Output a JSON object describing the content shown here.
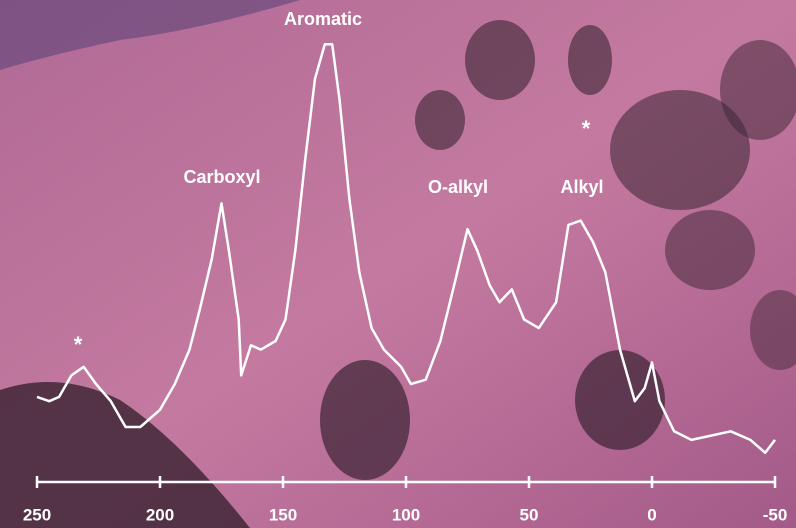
{
  "chart_data": {
    "type": "line",
    "x": [
      250,
      245,
      241,
      236,
      231,
      226,
      220,
      214,
      208,
      200,
      194,
      188,
      184,
      179,
      175,
      172,
      168,
      167,
      163,
      159,
      153,
      149,
      145,
      141,
      137,
      133,
      130,
      127,
      123,
      119,
      114,
      109,
      102,
      98,
      92,
      86,
      80,
      75,
      71,
      66,
      62,
      57,
      52,
      46,
      39,
      34,
      29,
      24,
      19,
      13,
      7,
      3,
      0,
      -3,
      -9,
      -16,
      -24,
      -32,
      -40,
      -46,
      -50
    ],
    "values": [
      17,
      16,
      17,
      22,
      24,
      20,
      16,
      10,
      10,
      14,
      20,
      28,
      37,
      49,
      62,
      51,
      35,
      22,
      29,
      28,
      30,
      35,
      51,
      72,
      91,
      99,
      99,
      86,
      63,
      46,
      33,
      28,
      24,
      20,
      21,
      30,
      44,
      56,
      51,
      43,
      39,
      42,
      35,
      33,
      39,
      57,
      58,
      53,
      46,
      28,
      16,
      19,
      25,
      16,
      9,
      7,
      8,
      9,
      7,
      4,
      7
    ],
    "color": "#ffffff",
    "xlim": [
      250,
      -50
    ],
    "xticks": [
      250,
      200,
      150,
      100,
      50,
      0,
      -50
    ],
    "ylim": [
      0,
      100
    ],
    "annotations": [
      "Aromatic",
      "Carboxyl",
      "O-alkyl",
      "Alkyl",
      "*",
      "*"
    ]
  }
}
